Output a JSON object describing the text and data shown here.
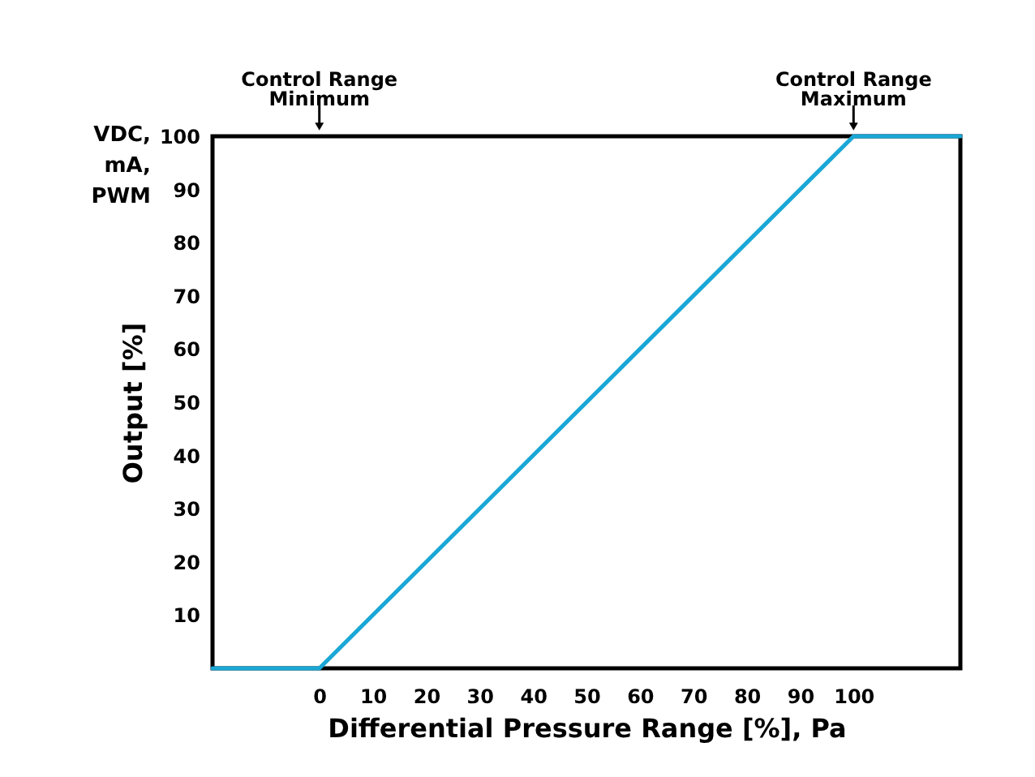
{
  "chart_data": {
    "type": "line",
    "xlabel": "Differential Pressure Range [%], Pa",
    "ylabel": "Output [%]",
    "x": [
      -20,
      0,
      100,
      120
    ],
    "series": [
      {
        "color": "#1aa7d6",
        "values": [
          0,
          0,
          100,
          100
        ]
      }
    ],
    "xlim": [
      -20,
      120
    ],
    "xticks": [
      0,
      10,
      20,
      30,
      40,
      50,
      60,
      70,
      80,
      90,
      100
    ],
    "ylim": [
      0,
      100
    ],
    "yticks": [
      10,
      20,
      30,
      40,
      50,
      60,
      70,
      80,
      90,
      100
    ],
    "grid": false,
    "legend": false,
    "marker": "none",
    "line_style": "solid",
    "annotations": [
      "VDC, mA, PWM",
      {
        "text": "Control Range Minimum",
        "x": 0
      },
      {
        "text": "Control Range Maximum",
        "x": 100,
        "y": 100
      }
    ]
  }
}
